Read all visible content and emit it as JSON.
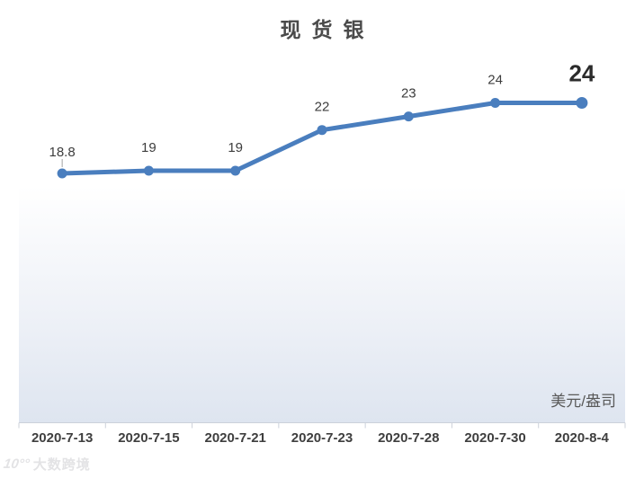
{
  "chart_data": {
    "type": "line",
    "title": "现货银",
    "categories": [
      "2020-7-13",
      "2020-7-15",
      "2020-7-21",
      "2020-7-23",
      "2020-7-28",
      "2020-7-30",
      "2020-8-4"
    ],
    "series": [
      {
        "name": "现货银",
        "values": [
          18.8,
          19,
          19,
          22,
          23,
          24,
          24
        ],
        "point_labels": [
          "18.8",
          "19",
          "19",
          "22",
          "23",
          "24",
          "24"
        ]
      }
    ],
    "xlabel": "",
    "ylabel": "美元/盎司",
    "legend_position": "none",
    "grid": false,
    "series_color": "#4a7ebe",
    "point_label_color": "#3d3d3d",
    "last_label_emphasized": true,
    "last_label_color": "#2b2b2b",
    "axis_line_color": "#ccd1da"
  },
  "unit_label": "美元/盎司",
  "watermark": {
    "logo": "10°°",
    "text": "大数跨境"
  }
}
